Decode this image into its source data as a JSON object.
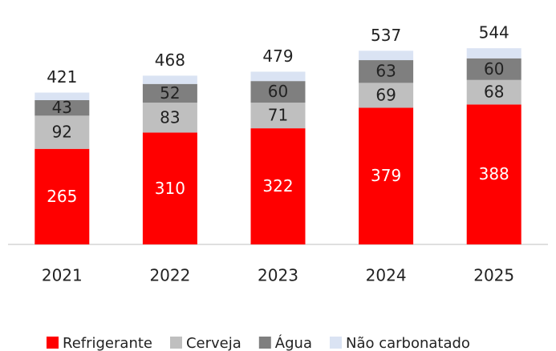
{
  "chart_data": {
    "type": "stacked_bar",
    "categories": [
      "2021",
      "2022",
      "2023",
      "2024",
      "2025"
    ],
    "series": [
      {
        "name": "Refrigerante",
        "color": "#ff0000",
        "values": [
          265,
          310,
          322,
          379,
          388
        ]
      },
      {
        "name": "Cerveja",
        "color": "#bfbfbf",
        "values": [
          92,
          83,
          71,
          69,
          68
        ]
      },
      {
        "name": "Água",
        "color": "#7f7f7f",
        "values": [
          43,
          52,
          60,
          63,
          60
        ]
      },
      {
        "name": "Não carbonatado",
        "color": "#dae3f3",
        "values": [
          21,
          23,
          26,
          26,
          28
        ]
      }
    ],
    "totals": [
      421,
      468,
      479,
      537,
      544
    ],
    "labeled_series": [
      0,
      1,
      2
    ]
  }
}
